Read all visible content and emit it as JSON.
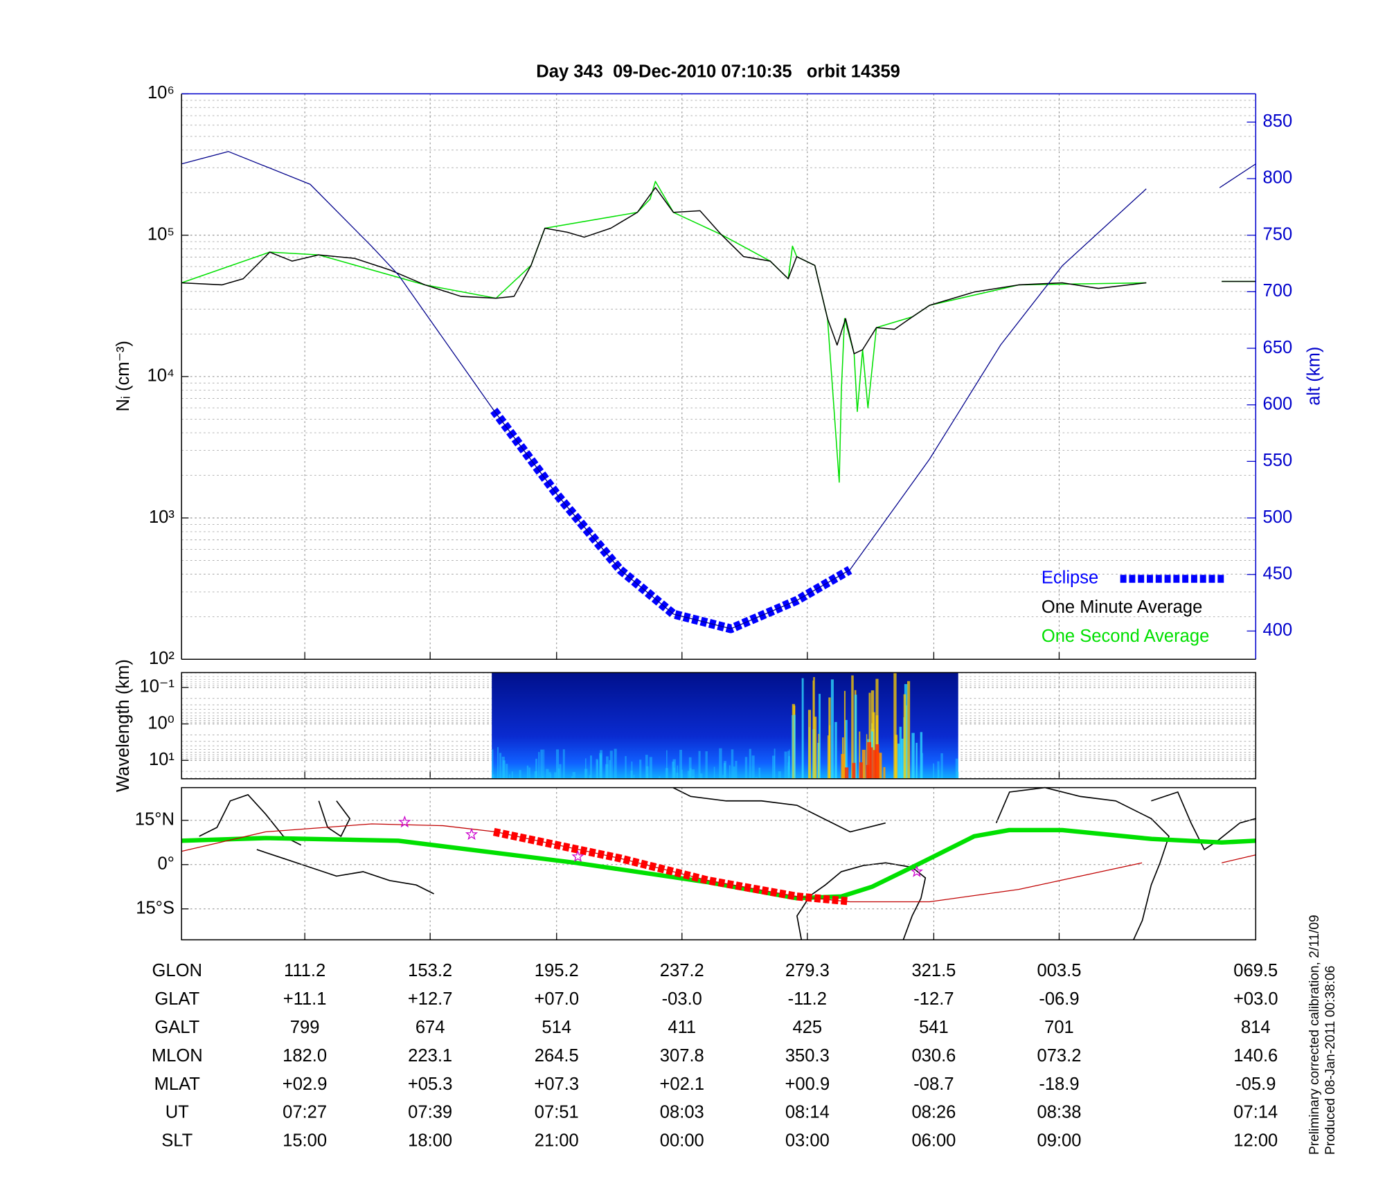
{
  "chart_data": [
    {
      "type": "line",
      "title": "Day 343  09-Dec-2010 07:10:35   orbit 14359",
      "ylabel": "Nᵢ (cm⁻³)",
      "y2label": "alt (km)",
      "ylog": true,
      "grid": true,
      "legend": "lower right",
      "xlim": [
        15.4,
        116.5
      ],
      "xticks": [
        27,
        38.8,
        50.7,
        62.5,
        74.3,
        86.2,
        98
      ],
      "ylim": [
        100,
        1000000
      ],
      "yticks": [
        {
          "value": 100,
          "label": "10²"
        },
        {
          "value": 1000,
          "label": "10³"
        },
        {
          "value": 10000,
          "label": "10⁴"
        },
        {
          "value": 100000,
          "label": "10⁵"
        },
        {
          "value": 1000000,
          "label": "10⁶"
        }
      ],
      "y2lim": [
        375,
        875
      ],
      "y2ticks": [
        400,
        450,
        500,
        550,
        600,
        650,
        700,
        750,
        800,
        850
      ],
      "series": [
        {
          "color": "#00008b",
          "axis": "y2",
          "x": [
            15.4,
            19.8,
            27.5,
            33.3,
            35.8,
            44.8,
            50.8,
            56.7,
            61.7,
            67.1,
            73.3,
            78.3,
            85.8,
            92.5,
            98.3,
            106.2,
            110,
            113.1,
            116.5
          ],
          "values": [
            813,
            824,
            795,
            740,
            715,
            595,
            520,
            454,
            415,
            402,
            427,
            454,
            552,
            653,
            723,
            791,
            null,
            792,
            813
          ]
        },
        {
          "name": "Eclipse",
          "color": "#0000ff",
          "axis": "y2",
          "x": [
            44.8,
            50.8,
            56.7,
            61.7,
            67.1,
            73.3,
            78.3
          ],
          "values": [
            595,
            520,
            454,
            415,
            402,
            427,
            454
          ]
        },
        {
          "name": "One Minute Average",
          "color": "#000000",
          "x": [
            15.4,
            19.2,
            21.2,
            23.7,
            25.8,
            28.3,
            31.7,
            35.0,
            38.3,
            41.7,
            45.0,
            46.7,
            48.3,
            49.6,
            51.7,
            53.3,
            55.8,
            58.3,
            60.0,
            61.7,
            64.2,
            66.2,
            68.3,
            70.8,
            72.5,
            73.3,
            75.0,
            76.2,
            77.1,
            77.9,
            78.7,
            79.5,
            80.8,
            82.5,
            84.2,
            85.8,
            90.0,
            94.2,
            98.3,
            101.7,
            106.2,
            110,
            113.3,
            116.5
          ],
          "values": [
            46000,
            44500,
            49200,
            75900,
            65600,
            72600,
            68500,
            56800,
            44500,
            36900,
            35800,
            36900,
            61100,
            112000,
            105000,
            96800,
            112000,
            145000,
            217000,
            145000,
            149000,
            101000,
            70500,
            65600,
            49200,
            70500,
            61100,
            25700,
            16700,
            25700,
            14500,
            15500,
            22200,
            21600,
            26500,
            31900,
            39600,
            44500,
            46000,
            42000,
            46000,
            null,
            47100,
            47100
          ]
        },
        {
          "name": "One Second Average",
          "color": "#00e000",
          "x": [
            15.4,
            23.7,
            28.3,
            38.3,
            45.0,
            48.3,
            49.6,
            58.3,
            59.5,
            60.0,
            61.7,
            66.2,
            70.8,
            72.5,
            72.9,
            73.3,
            75.0,
            76.2,
            77.3,
            77.5,
            77.8,
            78.7,
            79.0,
            79.5,
            80.0,
            80.8,
            84.2,
            85.8,
            94.2,
            106.2,
            110,
            113.3,
            116.5
          ],
          "values": [
            46000,
            75900,
            72600,
            44500,
            35800,
            61100,
            112000,
            145000,
            180000,
            240000,
            145000,
            101000,
            65600,
            49200,
            83700,
            70500,
            61100,
            25700,
            1790,
            8000,
            25700,
            14500,
            5660,
            15500,
            6000,
            22200,
            26500,
            31900,
            44500,
            46000,
            null,
            47100,
            47100
          ]
        }
      ]
    },
    {
      "type": "spectrogram",
      "ylabel": "Wavelength (km)",
      "ylog": true,
      "yinvert": true,
      "grid": true,
      "xlim": [
        15.4,
        116.5
      ],
      "xticks": [
        27,
        38.8,
        50.7,
        62.5,
        74.3,
        86.2,
        98
      ],
      "ylim": [
        0.039,
        32
      ],
      "yticks": [
        {
          "value": 0.1,
          "label": "10⁻¹"
        },
        {
          "value": 1,
          "label": "10⁰"
        },
        {
          "value": 10,
          "label": "10¹"
        }
      ],
      "extent": [
        44.6,
        88.5
      ]
    },
    {
      "type": "map",
      "grid": true,
      "xlim": [
        15.4,
        116.5
      ],
      "xticks": [
        27,
        38.8,
        50.7,
        62.5,
        74.3,
        86.2,
        98
      ],
      "ylim": [
        -25.5,
        26.1
      ],
      "yticks": [
        {
          "value": 15,
          "label": "15°N"
        },
        {
          "value": 0,
          "label": "0°"
        },
        {
          "value": -15,
          "label": "15°S"
        }
      ],
      "series": [
        {
          "color": "#00e000",
          "width": 5,
          "x": [
            15.4,
            23.3,
            35.8,
            52.5,
            65.0,
            73.3,
            77.5,
            80.4,
            85.0,
            90.0,
            93.3,
            98.3,
            106.7,
            113.3,
            116.5
          ],
          "values": [
            8.1,
            9.0,
            8.1,
            0.6,
            -6.0,
            -11.4,
            -10.8,
            -7.5,
            0.6,
            9.6,
            11.7,
            11.7,
            8.7,
            7.5,
            8.1
          ]
        },
        {
          "color": "#c00000",
          "width": 1,
          "x": [
            15.4,
            23.3,
            33.3,
            40.0,
            45.0,
            56.7,
            65.0,
            73.3,
            78.3,
            85.8,
            94.2,
            105.8,
            110,
            113.3,
            116.5
          ],
          "values": [
            4.5,
            11.1,
            13.8,
            13.2,
            11.1,
            2.1,
            -5.4,
            -10.8,
            -12.6,
            -12.6,
            -8.4,
            0.6,
            null,
            0.6,
            3.3
          ]
        },
        {
          "color": "#ff0000",
          "width": 9,
          "dashed": true,
          "x": [
            44.8,
            56.7,
            65.0,
            73.3,
            78.1
          ],
          "values": [
            11.1,
            2.1,
            -5.4,
            -10.8,
            -12.4
          ]
        }
      ],
      "markers": {
        "color": "#cc00cc",
        "x": [
          36.4,
          42.7,
          52.7,
          84.6
        ],
        "values": [
          14.4,
          10.2,
          2.7,
          -2.4
        ]
      }
    }
  ],
  "table": {
    "rows": [
      {
        "label": "GLON",
        "values": [
          "111.2",
          "153.2",
          "195.2",
          "237.2",
          "279.3",
          "321.5",
          "003.5",
          "069.5"
        ]
      },
      {
        "label": "GLAT",
        "values": [
          "+11.1",
          "+12.7",
          "+07.0",
          "-03.0",
          "-11.2",
          "-12.7",
          "-06.9",
          "+03.0"
        ]
      },
      {
        "label": "GALT",
        "values": [
          "799",
          "674",
          "514",
          "411",
          "425",
          "541",
          "701",
          "814"
        ]
      },
      {
        "label": "MLON",
        "values": [
          "182.0",
          "223.1",
          "264.5",
          "307.8",
          "350.3",
          "030.6",
          "073.2",
          "140.6"
        ]
      },
      {
        "label": "MLAT",
        "values": [
          "+02.9",
          "+05.3",
          "+07.3",
          "+02.1",
          "+00.9",
          "-08.7",
          "-18.9",
          "-05.9"
        ]
      },
      {
        "label": "UT",
        "values": [
          "07:27",
          "07:39",
          "07:51",
          "08:03",
          "08:14",
          "08:26",
          "08:38",
          "07:14"
        ]
      },
      {
        "label": "SLT",
        "values": [
          "15:00",
          "18:00",
          "21:00",
          "00:00",
          "03:00",
          "06:00",
          "09:00",
          "12:00"
        ]
      }
    ]
  },
  "notes": [
    "Preliminary corrected calibration, 2/11/09",
    "Produced 08-Jan-2011 00:38:06"
  ]
}
